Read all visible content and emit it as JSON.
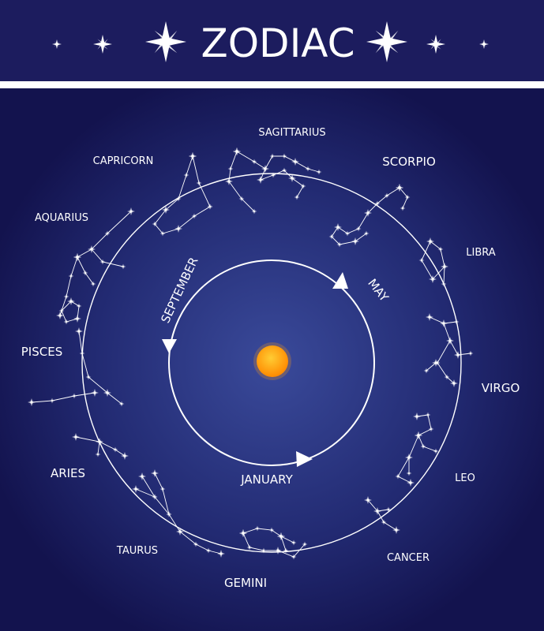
{
  "title": "ZODIAC",
  "signs": {
    "sagittarius": "SAGITTARIUS",
    "capricorn": "CAPRICORN",
    "scorpio": "SCORPIO",
    "aquarius": "AQUARIUS",
    "libra": "LIBRA",
    "pisces": "PISCES",
    "virgo": "VIRGO",
    "aries": "ARIES",
    "leo": "LEO",
    "taurus": "TAURUS",
    "cancer": "CANCER",
    "gemini": "GEMINI"
  },
  "months": {
    "september": "SEPTEMBER",
    "may": "MAY",
    "january": "JANUARY"
  },
  "colors": {
    "background": "#1a1a5c",
    "center_glow": "#3a4a9a",
    "header": "#1c1c5e",
    "sun_inner": "#ffcc33",
    "sun_outer": "#ff8a00",
    "lines": "#ffffff"
  }
}
